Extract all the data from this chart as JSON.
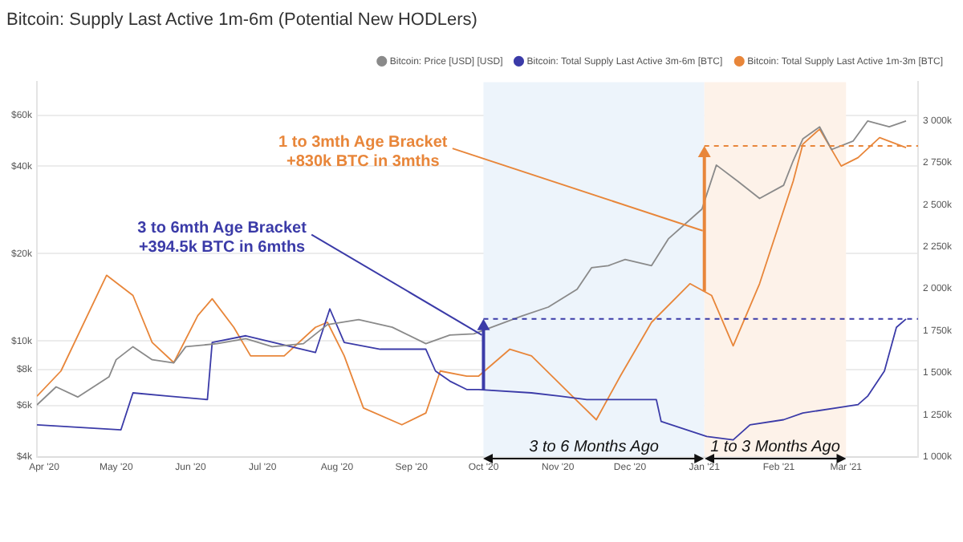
{
  "chart_data": {
    "type": "line",
    "title": "Bitcoin: Supply Last Active 1m-6m (Potential New HODLers)",
    "xlim": [
      "2020-03-29",
      "2021-03-31"
    ],
    "xticks": [
      {
        "value": "2020-04-01",
        "label": "Apr '20"
      },
      {
        "value": "2020-05-01",
        "label": "May '20"
      },
      {
        "value": "2020-06-01",
        "label": "Jun '20"
      },
      {
        "value": "2020-07-01",
        "label": "Jul '20"
      },
      {
        "value": "2020-08-01",
        "label": "Aug '20"
      },
      {
        "value": "2020-09-01",
        "label": "Sep '20"
      },
      {
        "value": "2020-10-01",
        "label": "Oct '20"
      },
      {
        "value": "2020-11-01",
        "label": "Nov '20"
      },
      {
        "value": "2020-12-01",
        "label": "Dec '20"
      },
      {
        "value": "2021-01-01",
        "label": "Jan '21"
      },
      {
        "value": "2021-02-01",
        "label": "Feb '21"
      },
      {
        "value": "2021-03-01",
        "label": "Mar '21"
      }
    ],
    "log": "y",
    "ylim": [
      4000,
      78000
    ],
    "yticks": [
      {
        "value": 4000,
        "label": "$4k"
      },
      {
        "value": 6000,
        "label": "$6k"
      },
      {
        "value": 8000,
        "label": "$8k"
      },
      {
        "value": 10000,
        "label": "$10k"
      },
      {
        "value": 20000,
        "label": "$20k"
      },
      {
        "value": 40000,
        "label": "$40k"
      },
      {
        "value": 60000,
        "label": "$60k"
      }
    ],
    "y2lim": [
      1000,
      3230
    ],
    "y2ticks": [
      {
        "value": 1000,
        "label": "1 000k"
      },
      {
        "value": 1250,
        "label": "1 250k"
      },
      {
        "value": 1500,
        "label": "1 500k"
      },
      {
        "value": 1750,
        "label": "1 750k"
      },
      {
        "value": 2000,
        "label": "2 000k"
      },
      {
        "value": 2250,
        "label": "2 250k"
      },
      {
        "value": 2500,
        "label": "2 500k"
      },
      {
        "value": 2750,
        "label": "2 750k"
      },
      {
        "value": 3000,
        "label": "3 000k"
      }
    ],
    "grid": "y",
    "legend": "top right",
    "marker": "none",
    "series": [
      {
        "name": "Bitcoin: Price [USD] [USD]",
        "color": "#8a8a8a",
        "x": [
          "2020-03-29",
          "2020-04-06",
          "2020-04-15",
          "2020-04-28",
          "2020-05-01",
          "2020-05-08",
          "2020-05-16",
          "2020-05-25",
          "2020-05-30",
          "2020-06-12",
          "2020-06-24",
          "2020-07-05",
          "2020-07-18",
          "2020-07-28",
          "2020-08-10",
          "2020-08-24",
          "2020-09-07",
          "2020-09-17",
          "2020-09-27",
          "2020-10-17",
          "2020-10-28",
          "2020-11-09",
          "2020-11-15",
          "2020-11-22",
          "2020-11-29",
          "2020-12-10",
          "2020-12-17",
          "2020-12-31",
          "2021-01-06",
          "2021-01-15",
          "2021-01-24",
          "2021-02-03",
          "2021-02-07",
          "2021-02-11",
          "2021-02-18",
          "2021-02-23",
          "2021-03-04",
          "2021-03-10",
          "2021-03-19",
          "2021-03-26"
        ],
        "values": [
          6030,
          6960,
          6420,
          7530,
          8630,
          9570,
          8630,
          8420,
          9570,
          9800,
          10200,
          9570,
          9800,
          11400,
          11860,
          11170,
          9800,
          10490,
          10600,
          12200,
          13100,
          15100,
          17900,
          18200,
          19100,
          18200,
          22500,
          28500,
          40400,
          35500,
          31000,
          34400,
          41800,
          49700,
          54700,
          45700,
          48900,
          57300,
          54700,
          57300
        ]
      },
      {
        "name": "Bitcoin: Total Supply Last Active 3m-6m [BTC]",
        "color": "#3b3ba8",
        "axis": "y2",
        "x": [
          "2020-03-29",
          "2020-05-03",
          "2020-05-08",
          "2020-05-23",
          "2020-06-08",
          "2020-06-10",
          "2020-06-24",
          "2020-07-23",
          "2020-07-29",
          "2020-08-04",
          "2020-08-19",
          "2020-09-07",
          "2020-09-11",
          "2020-09-17",
          "2020-09-24",
          "2020-09-29",
          "2020-10-21",
          "2020-11-02",
          "2020-11-13",
          "2020-12-12",
          "2020-12-14",
          "2021-01-02",
          "2021-01-13",
          "2021-01-20",
          "2021-02-03",
          "2021-02-11",
          "2021-03-06",
          "2021-03-10",
          "2021-03-17",
          "2021-03-22",
          "2021-03-26"
        ],
        "values": [
          1190,
          1160,
          1380,
          1360,
          1340,
          1680,
          1720,
          1620,
          1880,
          1680,
          1640,
          1640,
          1510,
          1450,
          1400,
          1400,
          1380,
          1360,
          1340,
          1340,
          1210,
          1120,
          1100,
          1190,
          1220,
          1260,
          1310,
          1360,
          1510,
          1770,
          1820
        ]
      },
      {
        "name": "Bitcoin: Total Supply Last Active 1m-3m [BTC]",
        "color": "#e8863a",
        "axis": "y2",
        "x": [
          "2020-03-29",
          "2020-04-08",
          "2020-04-27",
          "2020-05-08",
          "2020-05-16",
          "2020-05-25",
          "2020-06-04",
          "2020-06-10",
          "2020-06-19",
          "2020-06-26",
          "2020-07-10",
          "2020-07-23",
          "2020-07-28",
          "2020-08-04",
          "2020-08-12",
          "2020-08-28",
          "2020-09-07",
          "2020-09-13",
          "2020-09-24",
          "2020-09-29",
          "2020-10-12",
          "2020-10-21",
          "2020-11-07",
          "2020-11-17",
          "2020-11-27",
          "2020-12-10",
          "2020-12-26",
          "2021-01-04",
          "2021-01-13",
          "2021-01-24",
          "2021-02-07",
          "2021-02-11",
          "2021-02-18",
          "2021-02-27",
          "2021-03-06",
          "2021-03-15",
          "2021-03-26"
        ],
        "values": [
          1360,
          1510,
          2080,
          1960,
          1680,
          1560,
          1840,
          1940,
          1770,
          1600,
          1600,
          1770,
          1800,
          1600,
          1290,
          1190,
          1260,
          1510,
          1480,
          1480,
          1640,
          1600,
          1360,
          1220,
          1480,
          1800,
          2030,
          1960,
          1660,
          2030,
          2640,
          2860,
          2950,
          2730,
          2780,
          2900,
          2840
        ]
      }
    ],
    "bands": [
      {
        "axis": "x",
        "from": "2020-10-01",
        "to": "2021-01-01",
        "color": "#edf4fb",
        "label": "3 to 6 Months Ago"
      },
      {
        "axis": "x",
        "from": "2021-01-01",
        "to": "2021-03-01",
        "color": "#fdf2e9",
        "label": "1 to 3 Months Ago"
      }
    ],
    "ref_lines": [
      {
        "axis": "y2",
        "value": 1820,
        "color": "#3b3ba8",
        "line_style": "dashed"
      },
      {
        "axis": "y2",
        "value": 2850,
        "color": "#e8863a",
        "line_style": "dashed"
      }
    ],
    "annotations": [
      {
        "text": "3 to 6mth Age Bracket\n+394.5k BTC in 6mths",
        "x": "2020-10-01",
        "y": 10500
      },
      {
        "text": "1 to 3mth Age Bracket\n+830k BTC in 3mths",
        "x": "2021-01-01",
        "y": 24000
      }
    ]
  }
}
